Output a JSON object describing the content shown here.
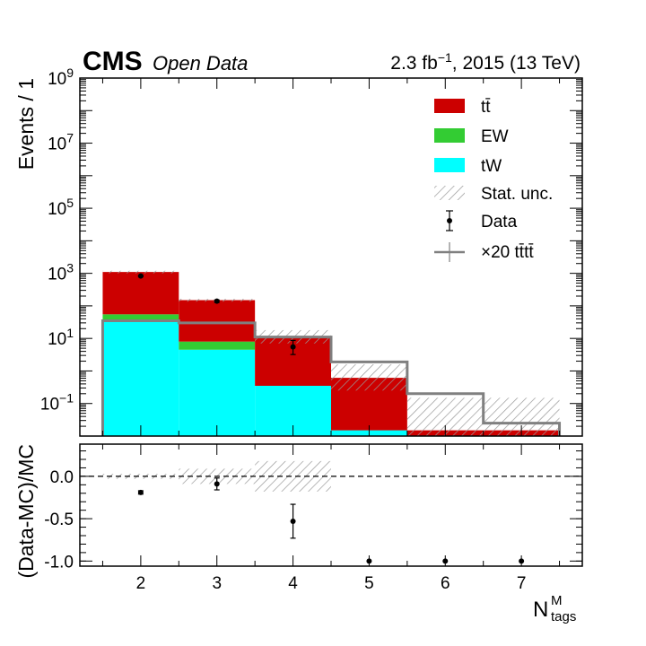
{
  "header": {
    "experiment": "CMS",
    "subtitle": "Open Data",
    "lumi_label": "2.3 fb",
    "lumi_exponent": "−1",
    "lumi_suffix": ", 2015 (13 TeV)"
  },
  "colors": {
    "ttbar": "#cc0000",
    "ew": "#33cc33",
    "tw": "#00ffff",
    "signal": "#808080",
    "hatch": "#999999"
  },
  "legend": {
    "ttbar": "tt̄",
    "ew": "EW",
    "tw": "tW",
    "stat": "Stat. unc.",
    "data": "Data",
    "signal": "×20 tt̄tt̄"
  },
  "chart_data": [
    {
      "type": "bar",
      "stacked": true,
      "log_y": true,
      "ylabel": "Events / 1",
      "ylim": [
        0.01,
        1000000000
      ],
      "x_range": [
        1.2,
        7.8
      ],
      "y_ticks": [
        {
          "value": 0.1,
          "base": "10",
          "exp": "−1"
        },
        {
          "value": 10,
          "base": "10",
          "exp": "1"
        },
        {
          "value": 1000,
          "base": "10",
          "exp": "3"
        },
        {
          "value": 100000,
          "base": "10",
          "exp": "5"
        },
        {
          "value": 10000000,
          "base": "10",
          "exp": "7"
        },
        {
          "value": 1000000000,
          "base": "10",
          "exp": "9"
        }
      ],
      "bin_edges": [
        1.5,
        2.5,
        3.5,
        4.5,
        5.5,
        6.5,
        7.5
      ],
      "series": [
        {
          "name": "tW",
          "values": [
            35,
            4.5,
            0.35,
            0.015,
            0.005,
            0.005
          ]
        },
        {
          "name": "EW",
          "values": [
            20,
            3.5,
            0.0,
            0.0,
            0.0,
            0.0
          ]
        },
        {
          "name": "tt̄",
          "values": [
            1045,
            142,
            10.5,
            0.6,
            0.01,
            0.01
          ]
        }
      ],
      "stat_unc_low": [
        1000,
        135,
        7,
        0.25,
        0.01,
        0.01
      ],
      "stat_unc_high": [
        1200,
        165,
        18,
        1.6,
        0.15,
        0.15
      ],
      "signal_x20": [
        35,
        30,
        11,
        1.9,
        0.2,
        0.025
      ],
      "data": {
        "x": [
          2,
          3,
          4
        ],
        "y": [
          830,
          140,
          5.5
        ],
        "yerr_low": [
          30,
          12,
          2.3
        ],
        "yerr_high": [
          30,
          12,
          3.2
        ]
      }
    },
    {
      "type": "scatter",
      "ylabel": "(Data-MC)/MC",
      "xlabel_main": "N",
      "xlabel_sup": "M",
      "xlabel_sub": "tags",
      "ylim": [
        -1.06,
        0.38
      ],
      "x_range": [
        1.2,
        7.8
      ],
      "y_ticks": [
        {
          "value": 0.0,
          "label": "0.0"
        },
        {
          "value": -0.5,
          "label": "-0.5"
        },
        {
          "value": -1.0,
          "label": "-1.0"
        }
      ],
      "x_ticks": [
        "2",
        "3",
        "4",
        "5",
        "6",
        "7"
      ],
      "reference_line": 0.0,
      "stat_unc_band": [
        0.03,
        0.09,
        0.18,
        0.0,
        0.0,
        0.0
      ],
      "points": {
        "x": [
          2,
          3,
          4,
          5,
          6,
          7
        ],
        "y": [
          -0.19,
          -0.09,
          -0.53,
          -1.0,
          -1.0,
          -1.0
        ],
        "yerr": [
          0.02,
          0.07,
          0.2,
          0.0,
          0.0,
          0.0
        ]
      }
    }
  ]
}
